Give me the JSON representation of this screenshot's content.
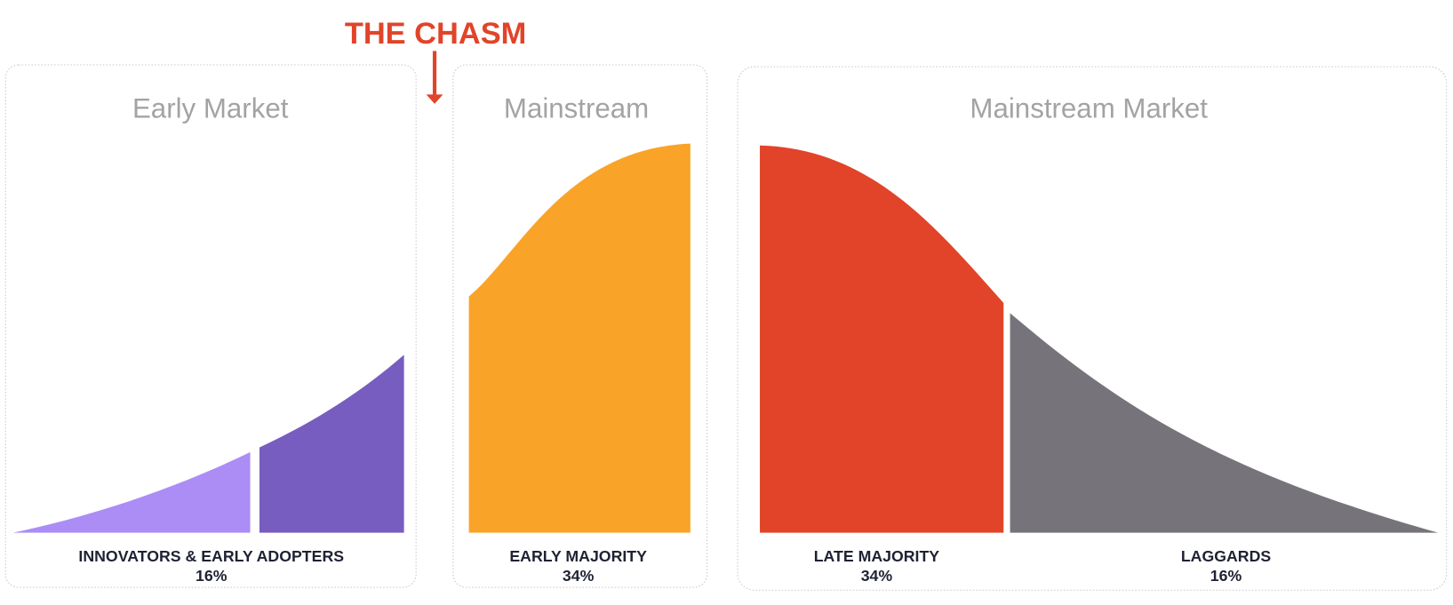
{
  "chasm_label": "THE CHASM",
  "panels": [
    {
      "title": "Early Market",
      "segments": [
        {
          "label": "INNOVATORS & EARLY ADOPTERS",
          "share": "16%"
        }
      ]
    },
    {
      "title": "Mainstream",
      "segments": [
        {
          "label": "EARLY MAJORITY",
          "share": "34%"
        }
      ]
    },
    {
      "title": "Mainstream Market",
      "segments": [
        {
          "label": "LATE MAJORITY",
          "share": "34%"
        },
        {
          "label": "LAGGARDS",
          "share": "16%"
        }
      ]
    }
  ]
}
